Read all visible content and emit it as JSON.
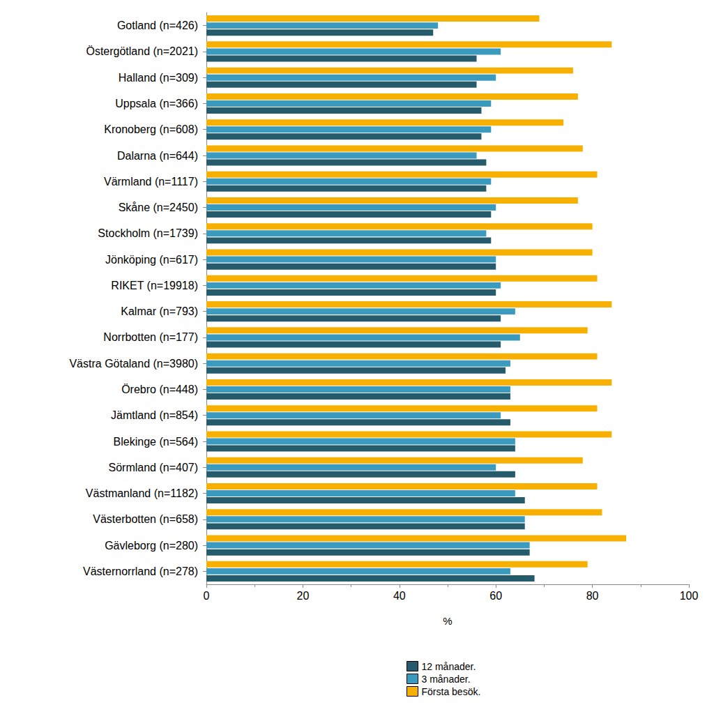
{
  "chart_data": {
    "type": "bar",
    "orientation": "horizontal",
    "grid": false,
    "legend": "bottom",
    "x_label": "%",
    "xlim": [
      0,
      100
    ],
    "xticks": [
      0,
      20,
      40,
      60,
      80,
      100
    ],
    "categories": [
      "Gotland (n=426)",
      "Östergötland (n=2021)",
      "Halland (n=309)",
      "Uppsala (n=366)",
      "Kronoberg (n=608)",
      "Dalarna (n=644)",
      "Värmland (n=1117)",
      "Skåne (n=2450)",
      "Stockholm (n=1739)",
      "Jönköping (n=617)",
      "RIKET (n=19918)",
      "Kalmar (n=793)",
      "Norrbotten (n=177)",
      "Västra Götaland (n=3980)",
      "Örebro (n=448)",
      "Jämtland (n=854)",
      "Blekinge (n=564)",
      "Sörmland (n=407)",
      "Västmanland (n=1182)",
      "Västerbotten (n=658)",
      "Gävleborg (n=280)",
      "Västernorrland (n=278)"
    ],
    "series": [
      {
        "name": "Första besök.",
        "color": "#f7b000",
        "values": [
          69,
          84,
          76,
          77,
          74,
          78,
          81,
          77,
          80,
          80,
          81,
          84,
          79,
          81,
          84,
          81,
          84,
          78,
          81,
          82,
          87,
          79
        ]
      },
      {
        "name": "3 månader.",
        "color": "#3a9bbf",
        "values": [
          48,
          61,
          60,
          59,
          59,
          56,
          59,
          60,
          58,
          60,
          61,
          64,
          65,
          63,
          63,
          61,
          64,
          60,
          64,
          66,
          67,
          63
        ]
      },
      {
        "name": "12 månader.",
        "color": "#265b6c",
        "values": [
          47,
          56,
          56,
          57,
          57,
          58,
          58,
          59,
          59,
          60,
          60,
          61,
          61,
          62,
          63,
          63,
          64,
          64,
          66,
          66,
          67,
          68
        ]
      }
    ]
  }
}
